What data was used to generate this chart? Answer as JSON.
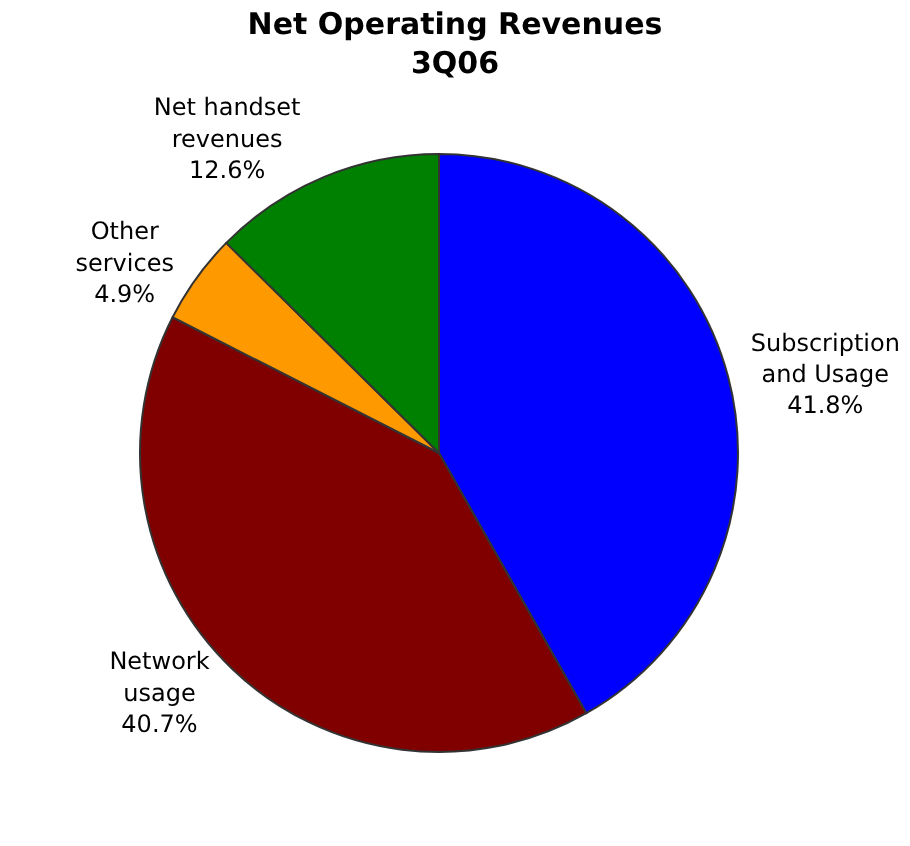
{
  "chart_data": {
    "type": "pie",
    "title": "Net Operating Revenues\n3Q06",
    "categories": [
      "Subscription\nand Usage",
      "Network\nusage",
      "Other\nservices",
      "Net handset\nrevenues"
    ],
    "values": [
      41.8,
      40.7,
      4.9,
      12.6
    ],
    "value_labels": [
      "41.8%",
      "40.7%",
      "4.9%",
      "12.6%"
    ],
    "colors": [
      "#0000ff",
      "#800000",
      "#ff9900",
      "#008000"
    ],
    "legend": false
  }
}
